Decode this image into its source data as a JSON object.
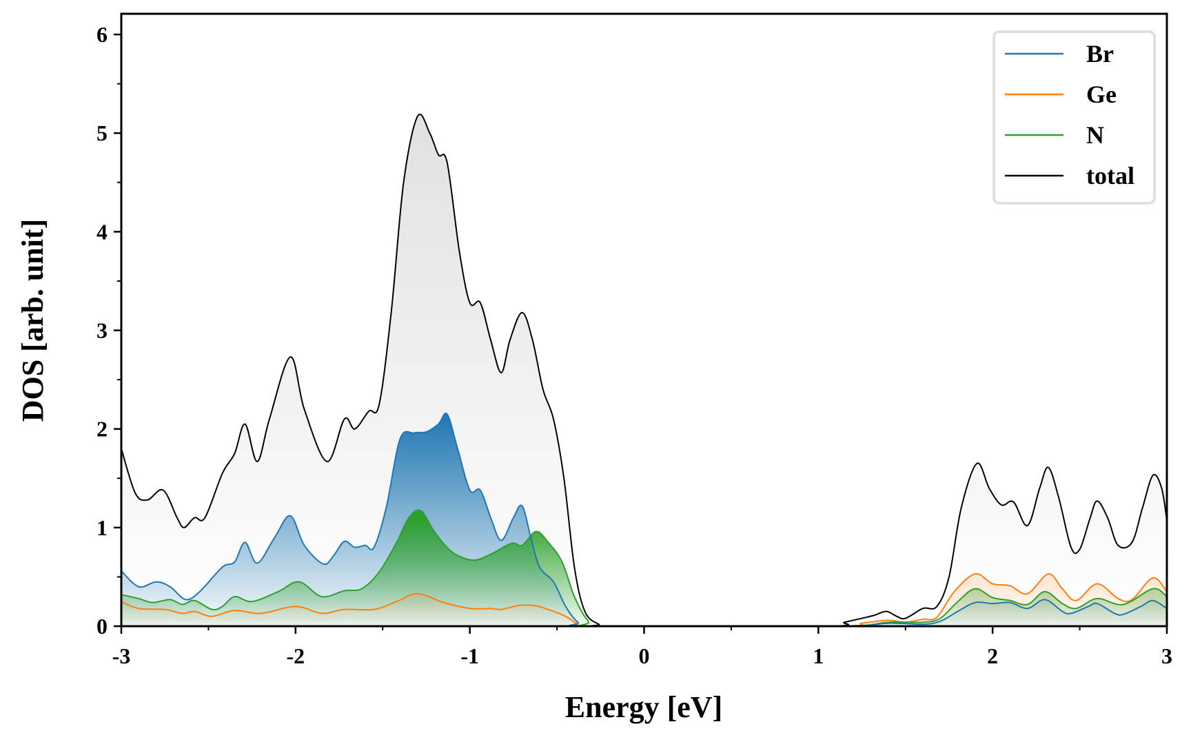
{
  "chart_data": {
    "type": "area",
    "title": "",
    "xlabel": "Energy [eV]",
    "ylabel": "DOS [arb. unit]",
    "xlim": [
      -3,
      3
    ],
    "ylim": [
      0,
      6.21
    ],
    "xticks": [
      -3,
      -2,
      -1,
      0,
      1,
      2,
      3
    ],
    "xtick_labels": [
      "-3",
      "-2",
      "-1",
      "0",
      "1",
      "2",
      "3"
    ],
    "yticks": [
      0,
      1,
      2,
      3,
      4,
      5,
      6
    ],
    "ytick_labels": [
      "0",
      "1",
      "2",
      "3",
      "4",
      "5",
      "6"
    ],
    "grid": false,
    "legend_position": "top-right",
    "series": [
      {
        "name": "Br",
        "color": "#1f77b4",
        "points": [
          [
            -3,
            0.56
          ],
          [
            -2.9,
            0.4
          ],
          [
            -2.8,
            0.45
          ],
          [
            -2.72,
            0.4
          ],
          [
            -2.63,
            0.27
          ],
          [
            -2.55,
            0.35
          ],
          [
            -2.42,
            0.6
          ],
          [
            -2.35,
            0.65
          ],
          [
            -2.29,
            0.85
          ],
          [
            -2.22,
            0.64
          ],
          [
            -2.12,
            0.9
          ],
          [
            -2.03,
            1.12
          ],
          [
            -1.95,
            0.82
          ],
          [
            -1.84,
            0.63
          ],
          [
            -1.78,
            0.72
          ],
          [
            -1.72,
            0.86
          ],
          [
            -1.66,
            0.8
          ],
          [
            -1.6,
            0.82
          ],
          [
            -1.55,
            0.8
          ],
          [
            -1.48,
            1.2
          ],
          [
            -1.4,
            1.9
          ],
          [
            -1.32,
            1.96
          ],
          [
            -1.25,
            1.97
          ],
          [
            -1.18,
            2.05
          ],
          [
            -1.13,
            2.15
          ],
          [
            -1.07,
            1.8
          ],
          [
            -1.0,
            1.38
          ],
          [
            -0.94,
            1.38
          ],
          [
            -0.88,
            1.1
          ],
          [
            -0.82,
            0.87
          ],
          [
            -0.75,
            1.1
          ],
          [
            -0.7,
            1.22
          ],
          [
            -0.65,
            0.9
          ],
          [
            -0.6,
            0.6
          ],
          [
            -0.52,
            0.45
          ],
          [
            -0.45,
            0.2
          ],
          [
            -0.38,
            0.04
          ],
          [
            -0.3,
            0
          ],
          [
            1.1,
            0
          ],
          [
            1.4,
            0.03
          ],
          [
            1.6,
            0.02
          ],
          [
            1.7,
            0.05
          ],
          [
            1.8,
            0.15
          ],
          [
            1.9,
            0.24
          ],
          [
            2.0,
            0.23
          ],
          [
            2.1,
            0.24
          ],
          [
            2.2,
            0.18
          ],
          [
            2.3,
            0.27
          ],
          [
            2.4,
            0.15
          ],
          [
            2.45,
            0.13
          ],
          [
            2.55,
            0.2
          ],
          [
            2.6,
            0.23
          ],
          [
            2.7,
            0.13
          ],
          [
            2.75,
            0.12
          ],
          [
            2.85,
            0.2
          ],
          [
            2.92,
            0.26
          ],
          [
            3,
            0.18
          ]
        ]
      },
      {
        "name": "Ge",
        "color": "#ff7f0e",
        "points": [
          [
            -3,
            0.25
          ],
          [
            -2.9,
            0.18
          ],
          [
            -2.75,
            0.17
          ],
          [
            -2.65,
            0.13
          ],
          [
            -2.58,
            0.15
          ],
          [
            -2.48,
            0.1
          ],
          [
            -2.35,
            0.16
          ],
          [
            -2.2,
            0.13
          ],
          [
            -2.0,
            0.2
          ],
          [
            -1.85,
            0.13
          ],
          [
            -1.72,
            0.17
          ],
          [
            -1.55,
            0.17
          ],
          [
            -1.42,
            0.25
          ],
          [
            -1.3,
            0.33
          ],
          [
            -1.15,
            0.24
          ],
          [
            -1.0,
            0.18
          ],
          [
            -0.88,
            0.18
          ],
          [
            -0.82,
            0.17
          ],
          [
            -0.72,
            0.21
          ],
          [
            -0.63,
            0.21
          ],
          [
            -0.55,
            0.17
          ],
          [
            -0.45,
            0.1
          ],
          [
            -0.38,
            0.02
          ],
          [
            -0.32,
            0
          ],
          [
            1.1,
            0
          ],
          [
            1.25,
            0.03
          ],
          [
            1.4,
            0.06
          ],
          [
            1.5,
            0.04
          ],
          [
            1.6,
            0.07
          ],
          [
            1.68,
            0.09
          ],
          [
            1.78,
            0.35
          ],
          [
            1.9,
            0.53
          ],
          [
            2.0,
            0.43
          ],
          [
            2.1,
            0.41
          ],
          [
            2.2,
            0.33
          ],
          [
            2.32,
            0.53
          ],
          [
            2.4,
            0.38
          ],
          [
            2.48,
            0.26
          ],
          [
            2.6,
            0.43
          ],
          [
            2.72,
            0.28
          ],
          [
            2.8,
            0.27
          ],
          [
            2.92,
            0.49
          ],
          [
            3,
            0.35
          ]
        ]
      },
      {
        "name": "N",
        "color": "#2ca02c",
        "points": [
          [
            -3,
            0.32
          ],
          [
            -2.9,
            0.28
          ],
          [
            -2.82,
            0.24
          ],
          [
            -2.72,
            0.27
          ],
          [
            -2.65,
            0.22
          ],
          [
            -2.58,
            0.26
          ],
          [
            -2.48,
            0.17
          ],
          [
            -2.42,
            0.2
          ],
          [
            -2.35,
            0.3
          ],
          [
            -2.25,
            0.25
          ],
          [
            -2.1,
            0.35
          ],
          [
            -1.98,
            0.45
          ],
          [
            -1.85,
            0.3
          ],
          [
            -1.72,
            0.36
          ],
          [
            -1.62,
            0.38
          ],
          [
            -1.52,
            0.55
          ],
          [
            -1.42,
            0.85
          ],
          [
            -1.35,
            1.1
          ],
          [
            -1.28,
            1.17
          ],
          [
            -1.2,
            0.95
          ],
          [
            -1.1,
            0.75
          ],
          [
            -0.98,
            0.67
          ],
          [
            -0.88,
            0.73
          ],
          [
            -0.76,
            0.84
          ],
          [
            -0.7,
            0.82
          ],
          [
            -0.62,
            0.96
          ],
          [
            -0.55,
            0.85
          ],
          [
            -0.47,
            0.65
          ],
          [
            -0.4,
            0.3
          ],
          [
            -0.32,
            0.05
          ],
          [
            -0.25,
            0
          ],
          [
            1.1,
            0
          ],
          [
            1.4,
            0.04
          ],
          [
            1.6,
            0.04
          ],
          [
            1.7,
            0.08
          ],
          [
            1.8,
            0.25
          ],
          [
            1.9,
            0.38
          ],
          [
            2.0,
            0.29
          ],
          [
            2.1,
            0.26
          ],
          [
            2.2,
            0.22
          ],
          [
            2.3,
            0.35
          ],
          [
            2.4,
            0.23
          ],
          [
            2.48,
            0.18
          ],
          [
            2.6,
            0.28
          ],
          [
            2.75,
            0.22
          ],
          [
            2.92,
            0.38
          ],
          [
            3,
            0.3
          ]
        ]
      },
      {
        "name": "total",
        "color": "#000000",
        "points": [
          [
            -3,
            1.8
          ],
          [
            -2.92,
            1.35
          ],
          [
            -2.85,
            1.28
          ],
          [
            -2.76,
            1.38
          ],
          [
            -2.68,
            1.1
          ],
          [
            -2.64,
            1.0
          ],
          [
            -2.58,
            1.1
          ],
          [
            -2.52,
            1.1
          ],
          [
            -2.42,
            1.55
          ],
          [
            -2.35,
            1.75
          ],
          [
            -2.29,
            2.05
          ],
          [
            -2.22,
            1.67
          ],
          [
            -2.15,
            2.1
          ],
          [
            -2.03,
            2.73
          ],
          [
            -1.95,
            2.2
          ],
          [
            -1.82,
            1.67
          ],
          [
            -1.72,
            2.1
          ],
          [
            -1.66,
            2.0
          ],
          [
            -1.58,
            2.18
          ],
          [
            -1.52,
            2.25
          ],
          [
            -1.45,
            3.2
          ],
          [
            -1.38,
            4.5
          ],
          [
            -1.3,
            5.17
          ],
          [
            -1.23,
            5.0
          ],
          [
            -1.18,
            4.78
          ],
          [
            -1.13,
            4.7
          ],
          [
            -1.06,
            3.8
          ],
          [
            -1.0,
            3.28
          ],
          [
            -0.94,
            3.28
          ],
          [
            -0.88,
            2.9
          ],
          [
            -0.82,
            2.57
          ],
          [
            -0.77,
            2.9
          ],
          [
            -0.7,
            3.18
          ],
          [
            -0.64,
            2.9
          ],
          [
            -0.58,
            2.4
          ],
          [
            -0.52,
            2.1
          ],
          [
            -0.46,
            1.5
          ],
          [
            -0.4,
            0.6
          ],
          [
            -0.34,
            0.15
          ],
          [
            -0.26,
            0.02
          ],
          [
            -0.2,
            0
          ],
          [
            1.05,
            0
          ],
          [
            1.15,
            0.04
          ],
          [
            1.25,
            0.08
          ],
          [
            1.32,
            0.11
          ],
          [
            1.39,
            0.15
          ],
          [
            1.45,
            0.1
          ],
          [
            1.5,
            0.08
          ],
          [
            1.6,
            0.18
          ],
          [
            1.68,
            0.2
          ],
          [
            1.75,
            0.5
          ],
          [
            1.82,
            1.2
          ],
          [
            1.91,
            1.65
          ],
          [
            1.98,
            1.4
          ],
          [
            2.05,
            1.23
          ],
          [
            2.12,
            1.26
          ],
          [
            2.2,
            1.02
          ],
          [
            2.27,
            1.4
          ],
          [
            2.32,
            1.61
          ],
          [
            2.38,
            1.3
          ],
          [
            2.45,
            0.8
          ],
          [
            2.5,
            0.78
          ],
          [
            2.56,
            1.1
          ],
          [
            2.6,
            1.27
          ],
          [
            2.66,
            1.1
          ],
          [
            2.72,
            0.82
          ],
          [
            2.8,
            0.85
          ],
          [
            2.86,
            1.2
          ],
          [
            2.92,
            1.53
          ],
          [
            2.97,
            1.4
          ],
          [
            3,
            1.07
          ]
        ]
      }
    ]
  }
}
